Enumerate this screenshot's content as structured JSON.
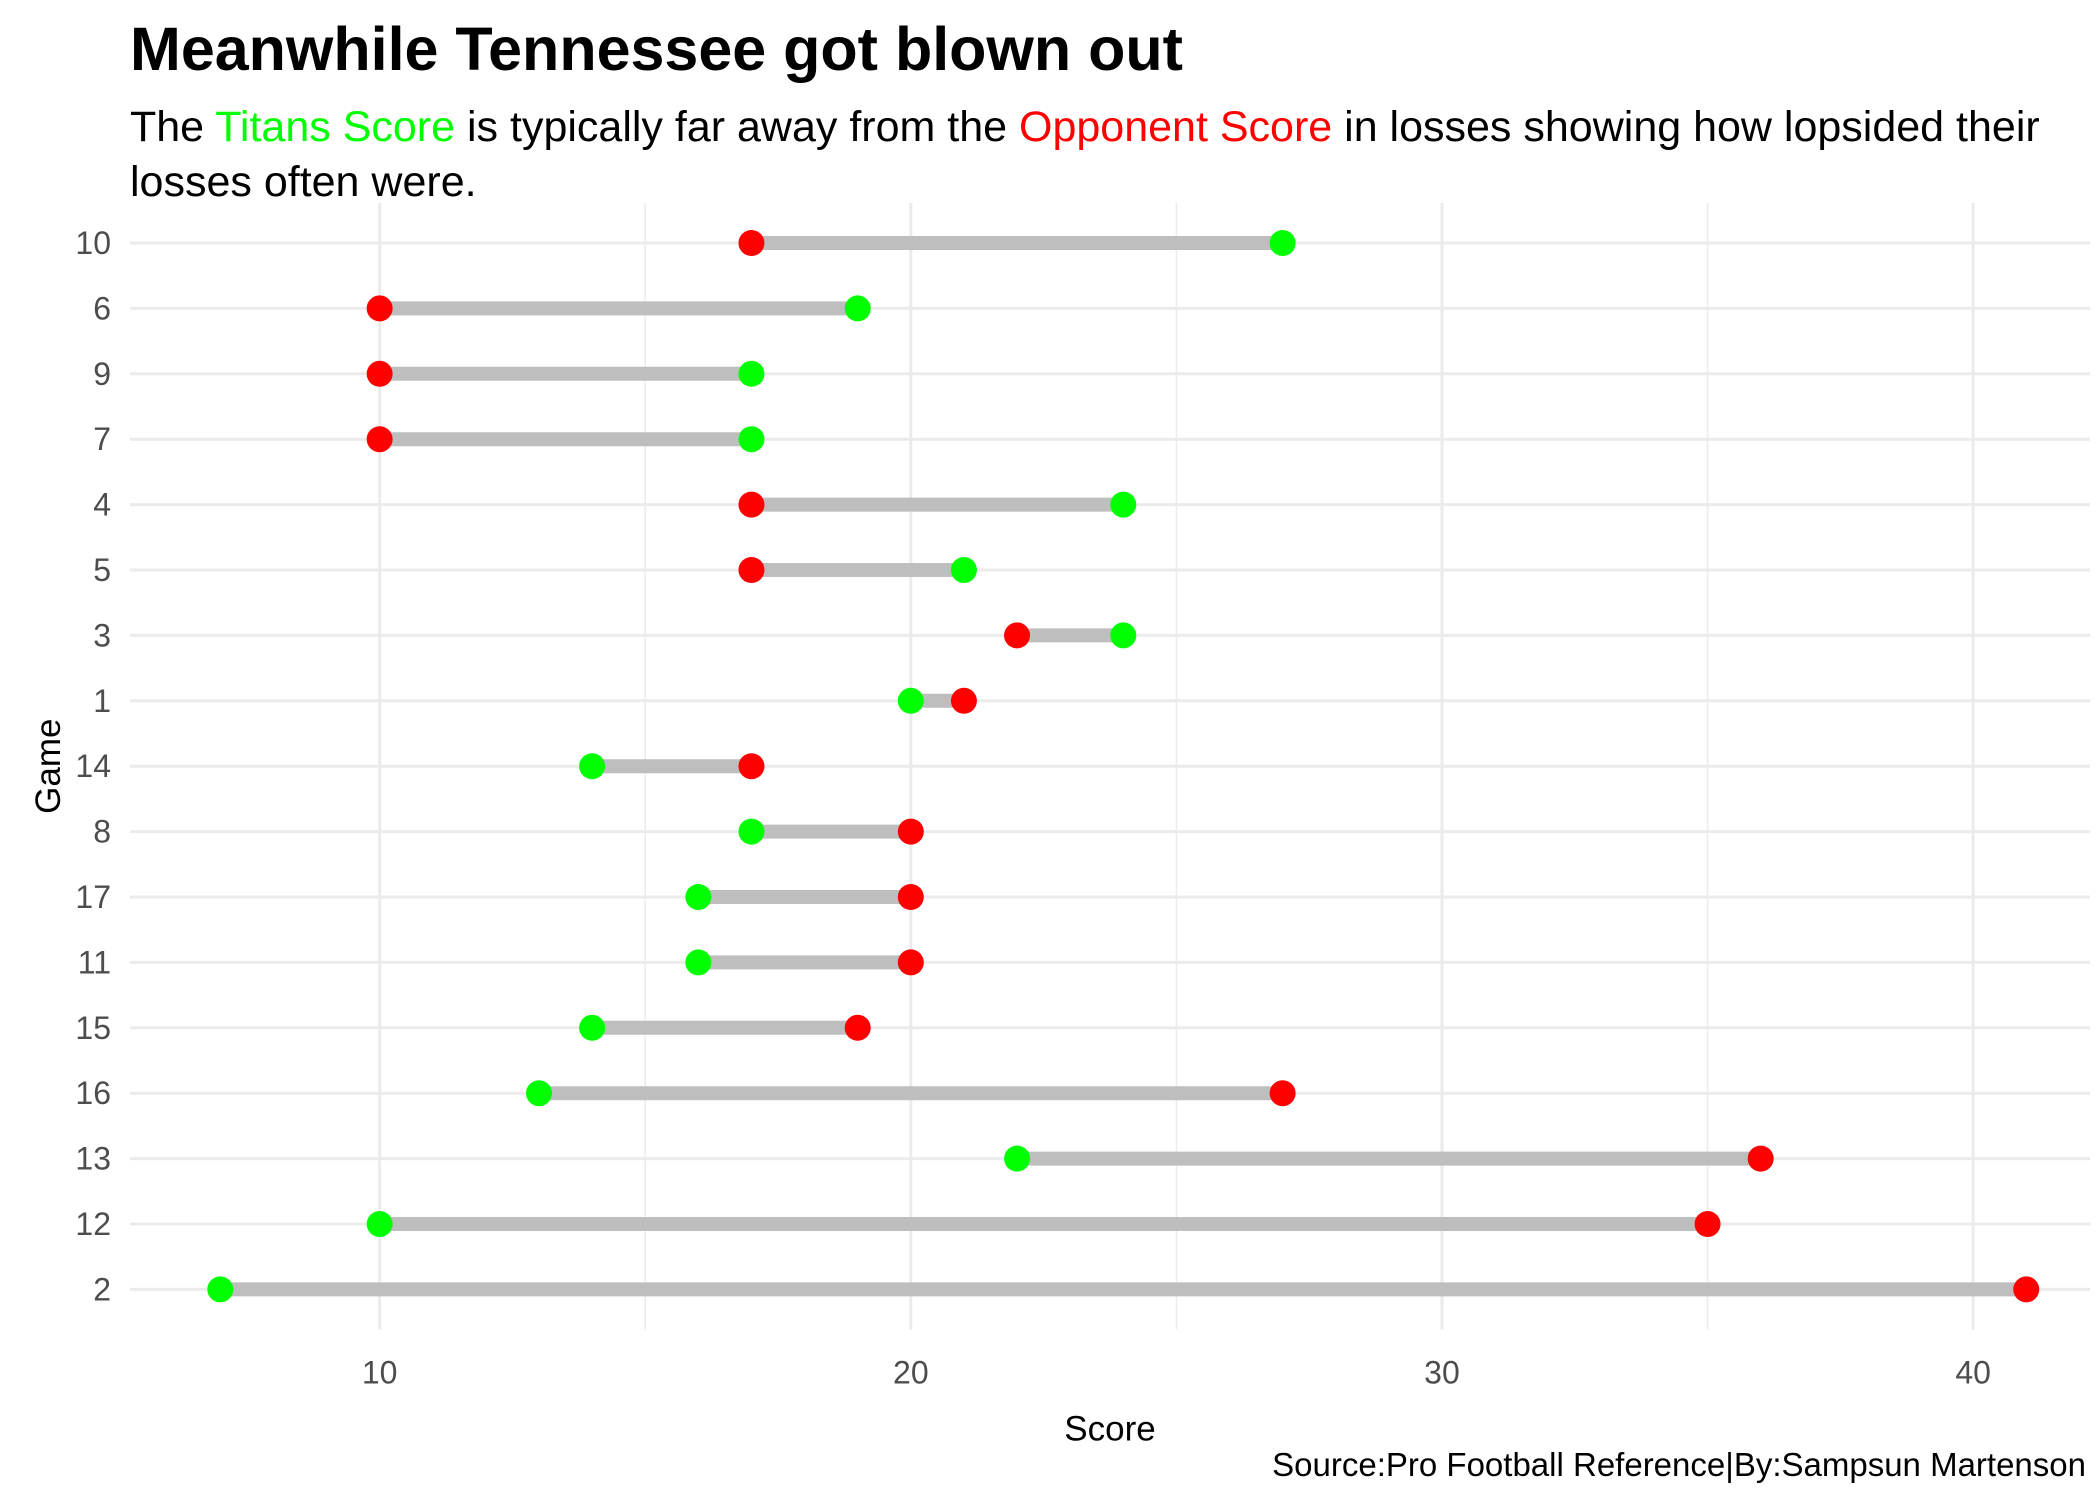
{
  "header": {
    "title": "Meanwhile Tennessee got blown out",
    "subtitle_pre": "The ",
    "subtitle_green": "Titans Score",
    "subtitle_mid": " is typically far away from the ",
    "subtitle_red": "Opponent Score",
    "subtitle_post": " in losses showing how lopsided their losses often were."
  },
  "caption": "Source:Pro Football Reference|By:Sampsun Martenson",
  "colors": {
    "titans": "#00ff00",
    "opponent": "#ff0000",
    "segment": "#bebebe",
    "grid": "#ebebeb"
  },
  "chart_data": {
    "type": "dumbbell",
    "xlabel": "Score",
    "ylabel": "Game",
    "xlim": [
      5.3,
      42.2
    ],
    "x_ticks": [
      10,
      20,
      30,
      40
    ],
    "grid": true,
    "series": [
      {
        "name": "Titans Score",
        "color": "#00ff00"
      },
      {
        "name": "Opponent Score",
        "color": "#ff0000"
      }
    ],
    "games": [
      {
        "game": "10",
        "titans": 27,
        "opponent": 17
      },
      {
        "game": "6",
        "titans": 19,
        "opponent": 10
      },
      {
        "game": "9",
        "titans": 17,
        "opponent": 10
      },
      {
        "game": "7",
        "titans": 17,
        "opponent": 10
      },
      {
        "game": "4",
        "titans": 24,
        "opponent": 17
      },
      {
        "game": "5",
        "titans": 21,
        "opponent": 17
      },
      {
        "game": "3",
        "titans": 24,
        "opponent": 22
      },
      {
        "game": "1",
        "titans": 20,
        "opponent": 21
      },
      {
        "game": "14",
        "titans": 14,
        "opponent": 17
      },
      {
        "game": "8",
        "titans": 17,
        "opponent": 20
      },
      {
        "game": "17",
        "titans": 16,
        "opponent": 20
      },
      {
        "game": "11",
        "titans": 16,
        "opponent": 20
      },
      {
        "game": "15",
        "titans": 14,
        "opponent": 19
      },
      {
        "game": "16",
        "titans": 13,
        "opponent": 27
      },
      {
        "game": "13",
        "titans": 22,
        "opponent": 36
      },
      {
        "game": "12",
        "titans": 10,
        "opponent": 35
      },
      {
        "game": "2",
        "titans": 7,
        "opponent": 41
      }
    ]
  }
}
